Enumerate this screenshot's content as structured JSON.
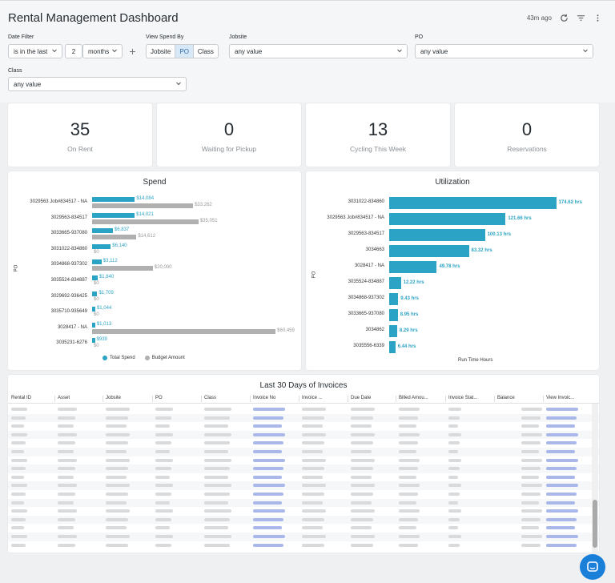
{
  "title": "Rental Management Dashboard",
  "last_updated": "43m ago",
  "filters": {
    "date_filter": {
      "label": "Date Filter",
      "operator": "is in the last",
      "amount": "2",
      "unit": "months"
    },
    "view_spend_by": {
      "label": "View Spend By",
      "options": [
        "Jobsite",
        "PO",
        "Class"
      ],
      "selected": "PO"
    },
    "jobsite": {
      "label": "Jobsite",
      "value": "any value"
    },
    "po": {
      "label": "PO",
      "value": "any value"
    },
    "class": {
      "label": "Class",
      "value": "any value"
    }
  },
  "kpis": [
    {
      "value": "35",
      "label": "On Rent"
    },
    {
      "value": "0",
      "label": "Waiting for Pickup"
    },
    {
      "value": "13",
      "label": "Cycling This Week"
    },
    {
      "value": "0",
      "label": "Reservations"
    }
  ],
  "colors": {
    "primary": "#2ba3c4",
    "secondary": "#b0b0b0",
    "link": "#1a7fd9"
  },
  "chart_data": [
    {
      "type": "bar",
      "orientation": "horizontal",
      "title": "Spend",
      "ylabel": "PO",
      "categories": [
        "3029563 Job#834517 - NA",
        "3029563-834517",
        "3033665-937080",
        "3031022-834860",
        "3034868-937302",
        "3035524-834887",
        "3029692-936425",
        "3035710-935649",
        "3028417 - NA",
        "3035231-6276"
      ],
      "series": [
        {
          "name": "Total Spend",
          "values": [
            14084,
            14021,
            6837,
            6140,
            3112,
            1840,
            1709,
            1044,
            1013,
            939
          ],
          "labels": [
            "$14,084",
            "$14,021",
            "$6,837",
            "$6,140",
            "$3,112",
            "$1,840",
            "$1,709",
            "$1,044",
            "$1,013",
            "$939"
          ]
        },
        {
          "name": "Budget Amount",
          "values": [
            33262,
            35051,
            14612,
            0,
            20000,
            0,
            0,
            0,
            60459,
            0
          ],
          "labels": [
            "$33,262",
            "$35,051",
            "$14,612",
            "$0",
            "$20,000",
            "$0",
            "$0",
            "$0",
            "$60,459",
            "$0"
          ]
        }
      ],
      "xlim": [
        0,
        62000
      ],
      "legend": [
        "Total Spend",
        "Budget Amount"
      ]
    },
    {
      "type": "bar",
      "orientation": "horizontal",
      "title": "Utilization",
      "ylabel": "PO",
      "xlabel": "Run Time Hours",
      "categories": [
        "3031022-834860",
        "3029563 Job#834517 - NA",
        "3029563-834517",
        "3034663",
        "3028417 - NA",
        "3035524-834887",
        "3034868-937302",
        "3033665-937080",
        "3034862",
        "3035556-6339"
      ],
      "series": [
        {
          "name": "Run Time Hours",
          "values": [
            174.62,
            121.66,
            100.13,
            83.32,
            49.78,
            12.22,
            9.43,
            8.95,
            8.29,
            6.44
          ],
          "labels": [
            "174.62 hrs",
            "121.66 hrs",
            "100.13 hrs",
            "83.32 hrs",
            "49.78 hrs",
            "12.22 hrs",
            "9.43 hrs",
            "8.95 hrs",
            "8.29 hrs",
            "6.44 hrs"
          ]
        }
      ],
      "xlim": [
        0,
        180
      ]
    }
  ],
  "invoices": {
    "title": "Last 30 Days of Invoices",
    "columns": [
      "Rental ID",
      "Asset",
      "Jobsite",
      "PO",
      "Class",
      "Invoice No",
      "Invoice ...",
      "Due Date",
      "Billed Amou...",
      "Invoice Stat...",
      "Balance",
      "View Invoic..."
    ],
    "row_count": 17
  }
}
